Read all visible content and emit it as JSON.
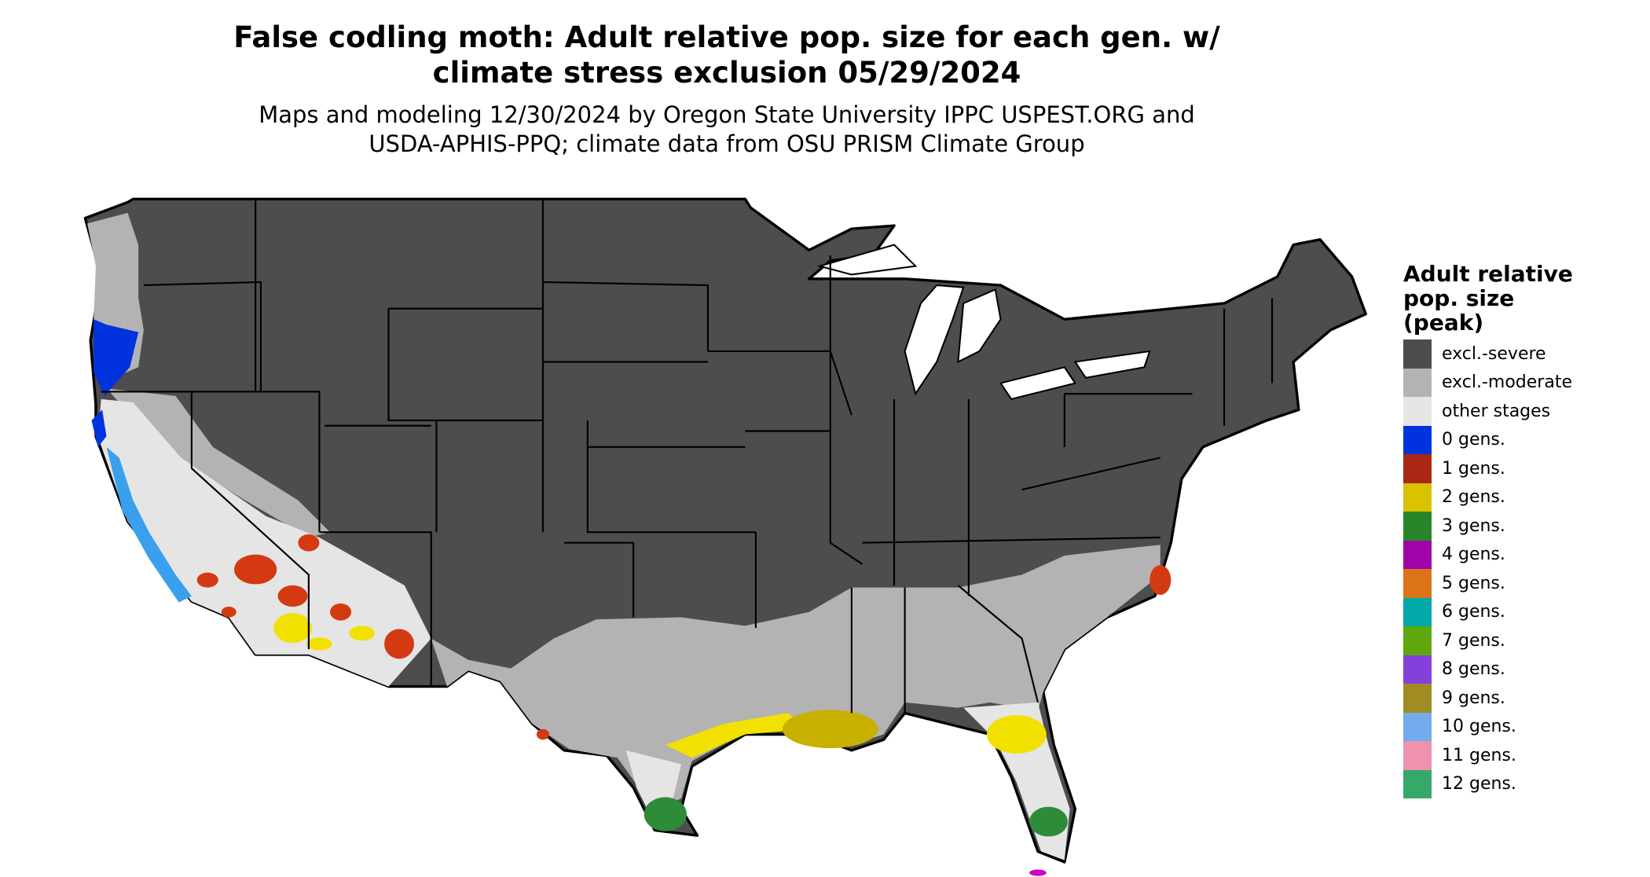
{
  "title": "False codling moth: Adult relative pop. size for each gen. w/ climate stress exclusion 05/29/2024",
  "title_lines": [
    "False codling moth: Adult relative pop. size for each gen. w/",
    "climate stress exclusion 05/29/2024"
  ],
  "subtitle_lines": [
    "Maps and modeling 12/30/2024 by Oregon State University IPPC USPEST.ORG and",
    "USDA-APHIS-PPQ; climate data from OSU PRISM Climate Group"
  ],
  "legend": {
    "title": "Adult relative pop. size (peak)",
    "items": [
      {
        "label": "excl.-severe",
        "color": "#4d4d4d"
      },
      {
        "label": "excl.-moderate",
        "color": "#b3b3b3"
      },
      {
        "label": "other stages",
        "color": "#e5e5e5"
      },
      {
        "label": "0 gens.",
        "color": "#0033dd"
      },
      {
        "label": "1 gens.",
        "color": "#aa2716"
      },
      {
        "label": "2 gens.",
        "color": "#dac200"
      },
      {
        "label": "3 gens.",
        "color": "#288628"
      },
      {
        "label": "4 gens.",
        "color": "#a004a8"
      },
      {
        "label": "5 gens.",
        "color": "#dc7318"
      },
      {
        "label": "6 gens.",
        "color": "#00a8a8"
      },
      {
        "label": "7 gens.",
        "color": "#5ea80e"
      },
      {
        "label": "8 gens.",
        "color": "#8640da"
      },
      {
        "label": "9 gens.",
        "color": "#a08c22"
      },
      {
        "label": "10 gens.",
        "color": "#72acec"
      },
      {
        "label": "11 gens.",
        "color": "#ee92ae"
      },
      {
        "label": "12 gens.",
        "color": "#36a86a"
      }
    ]
  }
}
